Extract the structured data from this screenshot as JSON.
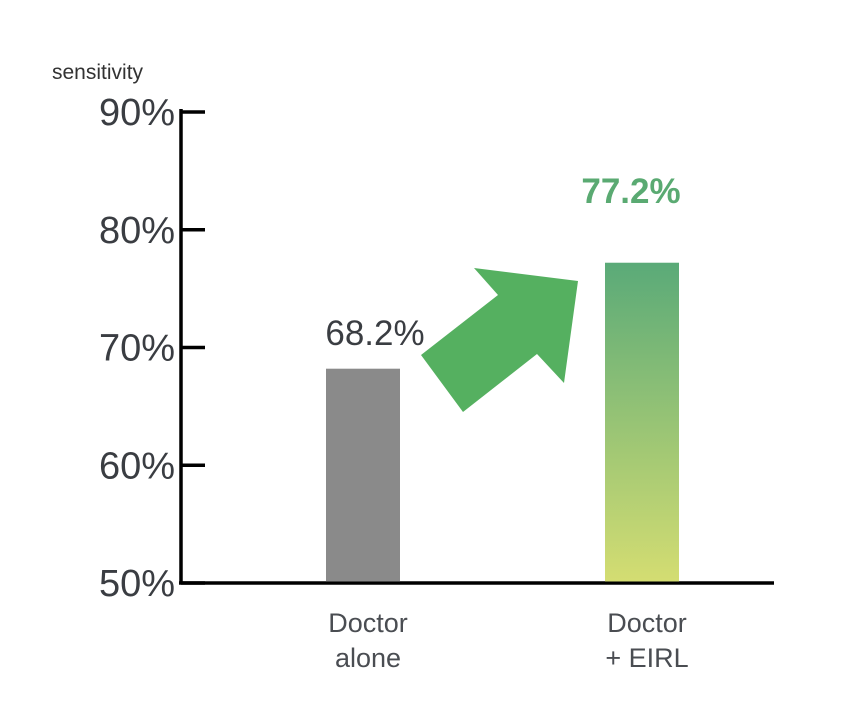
{
  "chart_data": {
    "type": "bar",
    "ylabel": "sensitivity",
    "xlabel": "",
    "ylim": [
      50,
      90
    ],
    "yticks": [
      "90%",
      "80%",
      "70%",
      "60%",
      "50%"
    ],
    "yticks_values": [
      90,
      80,
      70,
      60,
      50
    ],
    "categories": [
      [
        "Doctor",
        "alone"
      ],
      [
        "Doctor",
        "+ EIRL"
      ]
    ],
    "values": [
      68.2,
      77.2
    ],
    "value_labels": [
      "68.2%",
      "77.2%"
    ],
    "bar_colors": [
      "#8a8a8a",
      "gradient"
    ],
    "gradient_colors": [
      "#5aaa78",
      "#d4dd72"
    ],
    "accent_color": "#5aaa72",
    "arrow_color": "#55b060",
    "axis_color": "#000000",
    "grid": false,
    "legend": "none",
    "annotation": "increase-arrow"
  }
}
